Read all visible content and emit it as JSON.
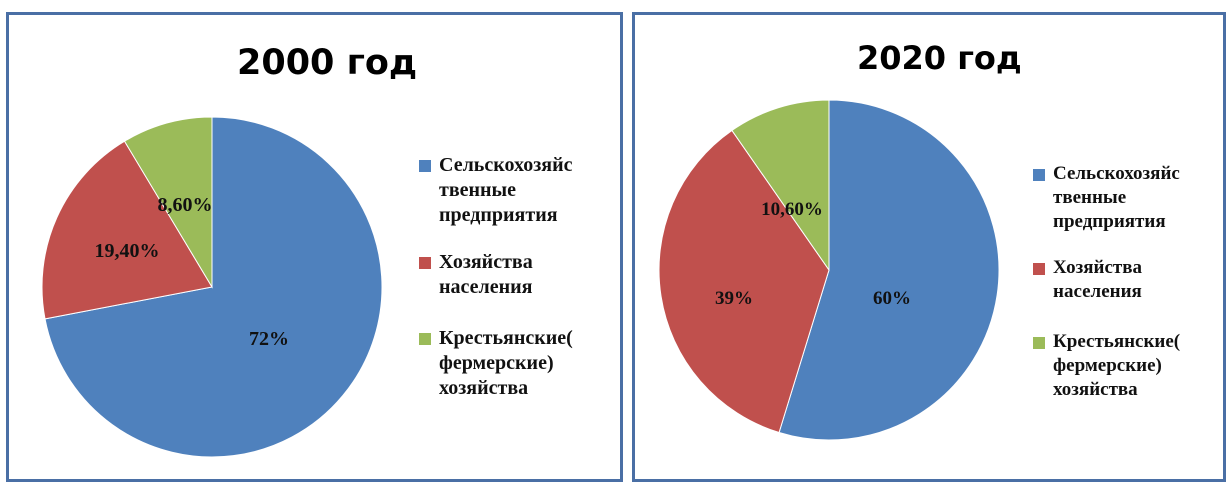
{
  "chart_data": [
    {
      "type": "pie",
      "title": "2000 год",
      "categories": [
        "Сельскохозяйственные предприятия",
        "Хозяйства населения",
        "Крестьянские(фермерские) хозяйства"
      ],
      "values": [
        72,
        19.4,
        8.6
      ],
      "data_labels": [
        "72%",
        "19,40%",
        "8,60%"
      ],
      "colors": [
        "#4f81bd",
        "#c0504d",
        "#9bbb59"
      ],
      "legend": "right"
    },
    {
      "type": "pie",
      "title": "2020 год",
      "categories": [
        "Сельскохозяйственные предприятия",
        "Хозяйства населения",
        "Крестьянские(фермерские) хозяйства"
      ],
      "values": [
        60,
        39,
        10.6
      ],
      "data_labels": [
        "60%",
        "39%",
        "10,60%"
      ],
      "colors": [
        "#4f81bd",
        "#c0504d",
        "#9bbb59"
      ],
      "legend": "right"
    }
  ],
  "legend_lines": [
    [
      "Сельскохозяйс",
      "твенные",
      "предприятия"
    ],
    [
      "Хозяйства",
      "населения"
    ],
    [
      "Крестьянские(",
      "фермерские)",
      "хозяйства"
    ]
  ]
}
